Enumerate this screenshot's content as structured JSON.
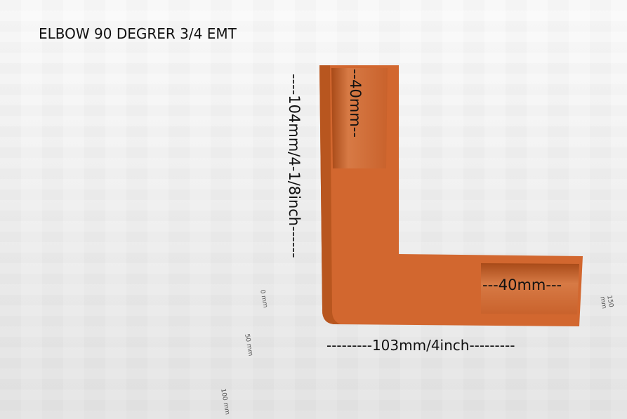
{
  "title": "ELBOW 90 DEGRER 3/4 EMT",
  "dimensions": {
    "height": "----104mm/4-1/8inch------",
    "socket_top": "--40mm--",
    "socket_right": "---40mm---",
    "width": "---------103mm/4inch---------"
  },
  "scale_labels": [
    "0 mm",
    "50 mm",
    "100 mm",
    "150 mm"
  ],
  "colors": {
    "part": "#d2672f",
    "part_shade": "#b8561f",
    "background": "#f2f2f2"
  }
}
